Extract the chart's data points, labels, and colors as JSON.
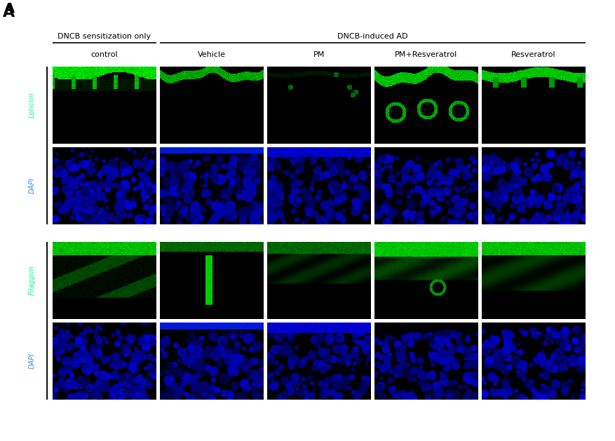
{
  "panel_label": "A",
  "group_label_1": "DNCB sensitization only",
  "group_label_2": "DNCB-induced AD",
  "col_labels": [
    "control",
    "Vehicle",
    "PM",
    "PM+Resveratrol",
    "Resveratrol"
  ],
  "row_labels_top": [
    "Loricrin",
    "DAPI"
  ],
  "row_labels_bottom": [
    "Filaggrin",
    "DAPI"
  ],
  "background_color": "#000000",
  "figure_bg": "#ffffff",
  "green_color": "#00ff00",
  "blue_color": "#0000ff",
  "label_green": "#00ff88",
  "label_blue": "#4488ff",
  "figsize": [
    8.77,
    6.29
  ],
  "dpi": 100
}
